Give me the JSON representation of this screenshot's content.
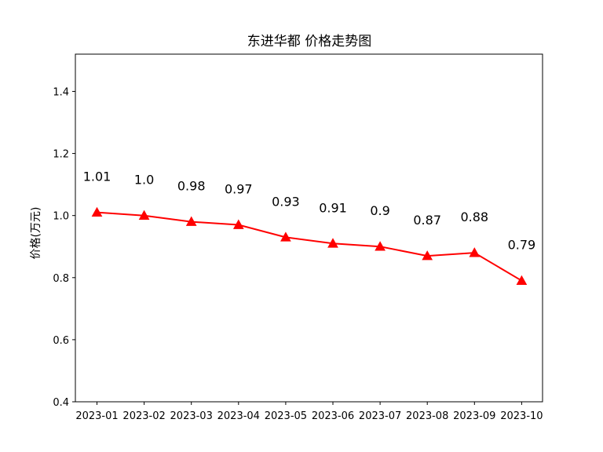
{
  "chart_data": {
    "type": "line",
    "title": "东进华都 价格走势图",
    "xlabel": "",
    "ylabel": "价格(万元)",
    "categories": [
      "2023-01",
      "2023-02",
      "2023-03",
      "2023-04",
      "2023-05",
      "2023-06",
      "2023-07",
      "2023-08",
      "2023-09",
      "2023-10"
    ],
    "series": [
      {
        "values": [
          1.01,
          1.0,
          0.98,
          0.97,
          0.93,
          0.91,
          0.9,
          0.87,
          0.88,
          0.79
        ],
        "labels": [
          "1.01",
          "1.0",
          "0.98",
          "0.97",
          "0.93",
          "0.91",
          "0.9",
          "0.87",
          "0.88",
          "0.79"
        ],
        "color": "#ff0000",
        "marker": "triangle-up"
      }
    ],
    "ylim": [
      0.4,
      1.52
    ],
    "yticks": [
      0.4,
      0.6,
      0.8,
      1.0,
      1.2,
      1.4
    ],
    "ytick_labels": [
      "0.4",
      "0.6",
      "0.8",
      "1.0",
      "1.2",
      "1.4"
    ],
    "grid": false,
    "legend": "none"
  }
}
